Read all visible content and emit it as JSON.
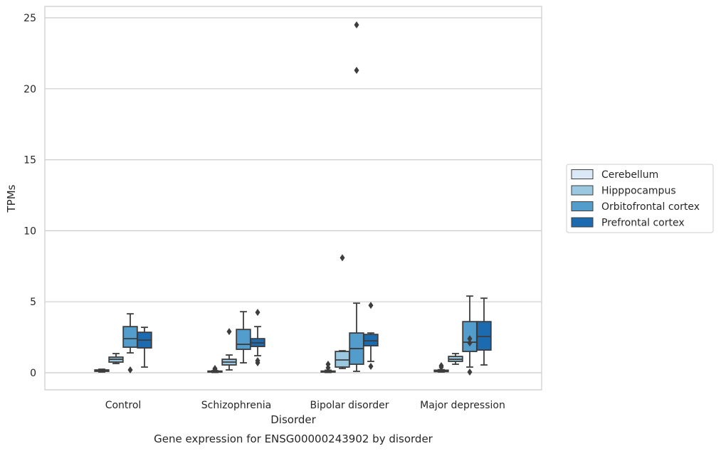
{
  "chart_data": {
    "type": "boxplot",
    "title": "Gene expression for ENSG00000243902 by disorder",
    "xlabel": "Disorder",
    "ylabel": "TPMs",
    "ylim": [
      -1.2,
      25.8
    ],
    "yticks": [
      0,
      5,
      10,
      15,
      20,
      25
    ],
    "grid": "horizontal",
    "legend": "right",
    "categories": [
      "Control",
      "Schizophrenia",
      "Bipolar disorder",
      "Major depression"
    ],
    "series": [
      {
        "name": "Cerebellum",
        "color": "#dbe9f6",
        "boxes": [
          {
            "whislo": 0.05,
            "q1": 0.1,
            "med": 0.15,
            "q3": 0.2,
            "whishi": 0.25,
            "fliers": []
          },
          {
            "whislo": 0.02,
            "q1": 0.05,
            "med": 0.08,
            "q3": 0.12,
            "whishi": 0.15,
            "fliers": [
              0.25,
              0.3
            ]
          },
          {
            "whislo": 0.02,
            "q1": 0.05,
            "med": 0.08,
            "q3": 0.12,
            "whishi": 0.18,
            "fliers": [
              0.35,
              0.6
            ]
          },
          {
            "whislo": 0.05,
            "q1": 0.08,
            "med": 0.12,
            "q3": 0.18,
            "whishi": 0.22,
            "fliers": [
              0.4,
              0.5
            ]
          }
        ]
      },
      {
        "name": "Hipppocampus",
        "color": "#9ac8e0",
        "boxes": [
          {
            "whislo": 0.65,
            "q1": 0.75,
            "med": 0.95,
            "q3": 1.1,
            "whishi": 1.35,
            "fliers": []
          },
          {
            "whislo": 0.2,
            "q1": 0.55,
            "med": 0.75,
            "q3": 0.95,
            "whishi": 1.25,
            "fliers": [
              2.9
            ]
          },
          {
            "whislo": 0.3,
            "q1": 0.4,
            "med": 0.9,
            "q3": 1.5,
            "whishi": 1.55,
            "fliers": [
              8.1
            ]
          },
          {
            "whislo": 0.6,
            "q1": 0.8,
            "med": 0.95,
            "q3": 1.15,
            "whishi": 1.35,
            "fliers": []
          }
        ]
      },
      {
        "name": "Orbitofrontal cortex",
        "color": "#529dcc",
        "boxes": [
          {
            "whislo": 1.4,
            "q1": 1.8,
            "med": 2.4,
            "q3": 3.25,
            "whishi": 4.15,
            "fliers": [
              0.2
            ]
          },
          {
            "whislo": 0.7,
            "q1": 1.65,
            "med": 2.0,
            "q3": 3.05,
            "whishi": 4.3,
            "fliers": []
          },
          {
            "whislo": 0.1,
            "q1": 0.6,
            "med": 1.7,
            "q3": 2.8,
            "whishi": 4.9,
            "fliers": [
              21.3,
              24.5
            ]
          },
          {
            "whislo": 0.4,
            "q1": 1.5,
            "med": 2.15,
            "q3": 3.6,
            "whishi": 5.4,
            "fliers": [
              0.05,
              2.1,
              2.4
            ]
          }
        ]
      },
      {
        "name": "Prefrontal cortex",
        "color": "#1c6aaf",
        "boxes": [
          {
            "whislo": 0.4,
            "q1": 1.75,
            "med": 2.3,
            "q3": 2.85,
            "whishi": 3.2,
            "fliers": []
          },
          {
            "whislo": 1.2,
            "q1": 1.85,
            "med": 2.1,
            "q3": 2.4,
            "whishi": 3.25,
            "fliers": [
              0.7,
              0.85,
              4.25
            ]
          },
          {
            "whislo": 0.8,
            "q1": 1.9,
            "med": 2.25,
            "q3": 2.7,
            "whishi": 2.8,
            "fliers": [
              0.45,
              4.75
            ]
          },
          {
            "whislo": 0.55,
            "q1": 1.6,
            "med": 2.55,
            "q3": 3.6,
            "whishi": 5.25,
            "fliers": []
          }
        ]
      }
    ]
  }
}
